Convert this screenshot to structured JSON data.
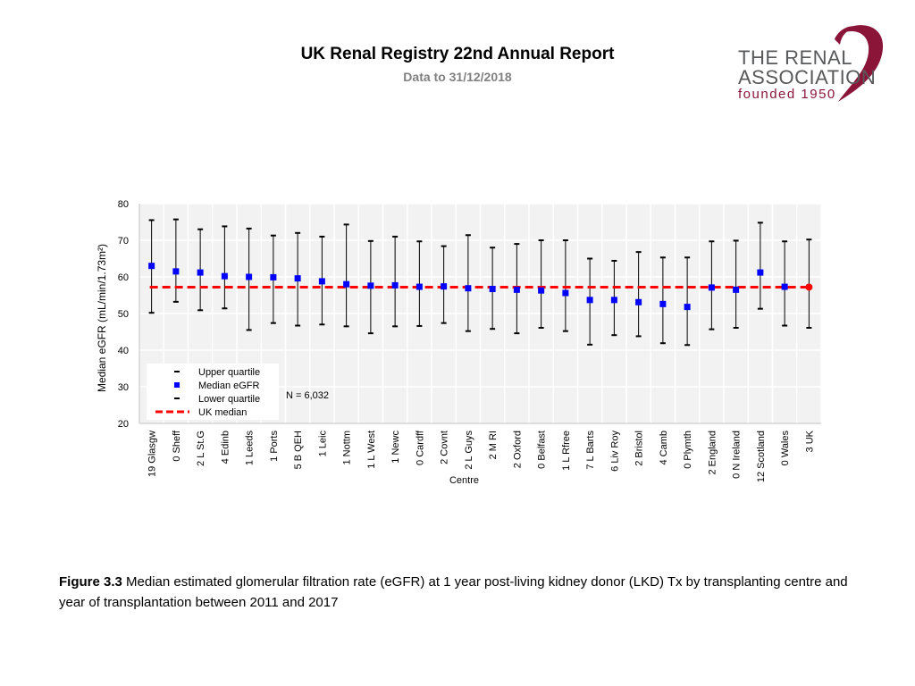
{
  "header": {
    "title": "UK Renal Registry 22nd Annual Report",
    "subtitle": "Data to 31/12/2018"
  },
  "logo": {
    "line1": "THE RENAL",
    "line2": "ASSOCIATION",
    "line3": "founded 1950",
    "brand_color": "#8a1538",
    "text_color": "#58595b"
  },
  "caption": {
    "label": "Figure 3.3",
    "text": " Median estimated glomerular filtration rate (eGFR) at 1 year post-living kidney donor (LKD) Tx by transplanting centre and year of transplantation between 2011 and 2017"
  },
  "chart_data": {
    "type": "scatter",
    "title": "",
    "xlabel": "Centre",
    "ylabel": "Median eGFR (mL/min/1.73m²)",
    "ylim": [
      20,
      80
    ],
    "yticks": [
      20,
      30,
      40,
      50,
      60,
      70,
      80
    ],
    "grid": true,
    "categories": [
      "19 Glasgw",
      "0 Sheff",
      "2 L St.G",
      "4 Edinb",
      "1 Leeds",
      "1 Ports",
      "5 B QEH",
      "1 Leic",
      "1 Nottm",
      "1 L West",
      "1 Newc",
      "0 Cardff",
      "2 Covnt",
      "2 L Guys",
      "2 M RI",
      "2 Oxford",
      "0 Belfast",
      "1 L Rfree",
      "7 L Barts",
      "6 Liv Roy",
      "2 Bristol",
      "4 Camb",
      "0 Plymth",
      "2 England",
      "0 N Ireland",
      "12 Scotland",
      "0 Wales",
      "3 UK"
    ],
    "series": [
      {
        "name": "Upper quartile",
        "values": [
          75.5,
          75.7,
          73.0,
          73.8,
          73.2,
          71.3,
          72.0,
          71.0,
          74.3,
          69.8,
          71.0,
          69.7,
          68.4,
          71.4,
          68.0,
          69.0,
          70.0,
          70.0,
          65.0,
          64.4,
          66.8,
          65.3,
          65.3,
          69.7,
          69.9,
          74.8,
          69.7,
          70.2
        ]
      },
      {
        "name": "Median eGFR",
        "values": [
          63.0,
          61.5,
          61.2,
          60.2,
          60.0,
          59.9,
          59.6,
          58.8,
          58.0,
          57.6,
          57.7,
          57.3,
          57.4,
          56.9,
          56.7,
          56.5,
          56.3,
          55.6,
          53.7,
          53.7,
          53.1,
          52.6,
          51.8,
          57.1,
          56.5,
          61.2,
          57.3,
          57.2
        ]
      },
      {
        "name": "Lower quartile",
        "values": [
          50.2,
          53.2,
          50.9,
          51.4,
          45.5,
          47.4,
          46.7,
          47.0,
          46.5,
          44.6,
          46.5,
          46.6,
          47.4,
          45.2,
          45.8,
          44.6,
          46.1,
          45.2,
          41.5,
          44.1,
          43.8,
          41.9,
          41.4,
          45.7,
          46.1,
          51.3,
          46.7,
          46.1
        ]
      },
      {
        "name": "UK median",
        "values": [
          57.2
        ]
      }
    ],
    "legend": {
      "items": [
        "Upper quartile",
        "Median eGFR",
        "Lower quartile",
        "UK median"
      ],
      "position": "bottom-left",
      "n_label": "N = 6,032"
    },
    "colors": {
      "median": "#0000ff",
      "uk_median_line": "#ff0000",
      "uk_point": "#ff0000",
      "whisker": "#000000",
      "plot_bg": "#f2f2f2",
      "grid": "#ffffff"
    }
  }
}
